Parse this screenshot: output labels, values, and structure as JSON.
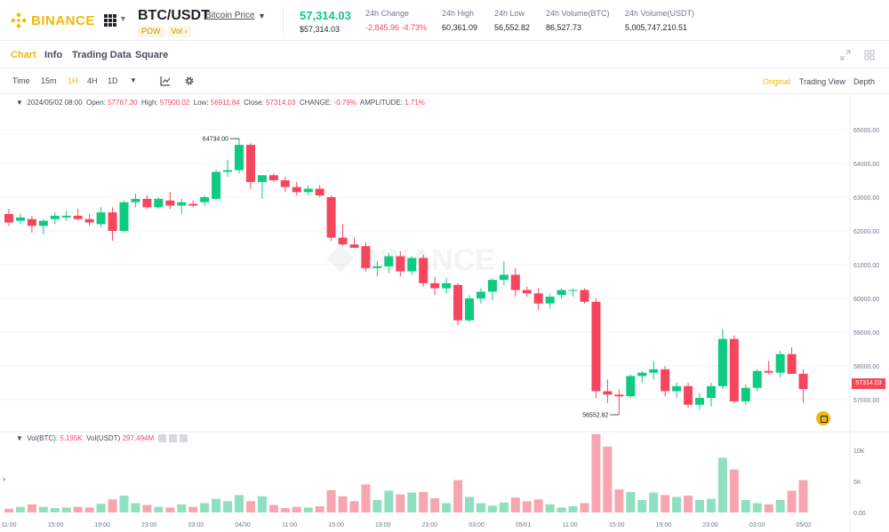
{
  "header": {
    "logo_text": "BINANCE",
    "pair": "BTC/USDT",
    "pair_link": "Bitcoin Price",
    "tags": [
      "POW",
      "Vol ›"
    ],
    "last_price": "57,314.03",
    "last_price_usd": "$57,314.03",
    "stats": [
      {
        "label": "24h Change",
        "value": "-2,845.96 -4.73%",
        "negative": true
      },
      {
        "label": "24h High",
        "value": "60,361.09",
        "negative": false
      },
      {
        "label": "24h Low",
        "value": "56,552.82",
        "negative": false
      },
      {
        "label": "24h Volume(BTC)",
        "value": "86,527.73",
        "negative": false
      },
      {
        "label": "24h Volume(USDT)",
        "value": "5,005,747,210.51",
        "negative": false
      }
    ],
    "colors": {
      "brand": "#f0b90b",
      "up": "#0ecb81",
      "down": "#f6465d"
    }
  },
  "tabs": [
    "Chart",
    "Info",
    "Trading Data",
    "Square"
  ],
  "active_tab": "Chart",
  "toolbar": {
    "intervals": [
      "Time",
      "15m",
      "1H",
      "4H",
      "1D"
    ],
    "active_interval": "1H",
    "views": [
      "Original",
      "Trading View",
      "Depth"
    ],
    "active_view": "Original",
    "icons": [
      "dropdown-caret-icon",
      "indicators-icon",
      "settings-icon",
      "fullscreen-icon",
      "layout-grid-icon"
    ]
  },
  "ohlc": {
    "date": "2024/05/02 08:00",
    "open_label": "Open:",
    "open": "57767.30",
    "high_label": "High:",
    "high": "57900.02",
    "low_label": "Low:",
    "low": "56911.84",
    "close_label": "Close:",
    "close": "57314.03",
    "change_label": "CHANGE:",
    "change": "-0.79%",
    "amplitude_label": "AMPLITUDE:",
    "amplitude": "1.71%"
  },
  "volume_legend": {
    "btc_label": "Vol(BTC):",
    "btc": "5.195K",
    "usdt_label": "Vol(USDT)",
    "usdt": "297.494M"
  },
  "watermark": "BINANCE",
  "chart_data": {
    "type": "candlestick",
    "price_axis_ticks": [
      "65000.00",
      "64000.00",
      "63000.00",
      "62000.00",
      "61000.00",
      "60000.00",
      "59000.00",
      "58000.00",
      "57000.00"
    ],
    "volume_axis_ticks": [
      "10K",
      "5K",
      "0.00"
    ],
    "time_labels": [
      "11:00",
      "15:00",
      "19:00",
      "23:00",
      "03:00",
      "04/30",
      "11:00",
      "15:00",
      "19:00",
      "23:00",
      "03:00",
      "05/01",
      "11:00",
      "15:00",
      "19:00",
      "23:00",
      "03:00",
      "05/02"
    ],
    "max_label": "64734.00",
    "min_label": "56552.82",
    "last_price_label": "57314.03",
    "ylim": [
      56500,
      65500
    ],
    "volume_ylim": [
      0,
      12000
    ],
    "candles": [
      {
        "o": 62500,
        "h": 62650,
        "l": 62150,
        "c": 62250,
        "v": 600
      },
      {
        "o": 62300,
        "h": 62500,
        "l": 62200,
        "c": 62400,
        "v": 900
      },
      {
        "o": 62350,
        "h": 62450,
        "l": 61950,
        "c": 62150,
        "v": 1300
      },
      {
        "o": 62150,
        "h": 62350,
        "l": 61900,
        "c": 62300,
        "v": 900
      },
      {
        "o": 62350,
        "h": 62550,
        "l": 62200,
        "c": 62450,
        "v": 700
      },
      {
        "o": 62400,
        "h": 62600,
        "l": 62300,
        "c": 62450,
        "v": 800
      },
      {
        "o": 62450,
        "h": 62650,
        "l": 62300,
        "c": 62350,
        "v": 900
      },
      {
        "o": 62350,
        "h": 62500,
        "l": 62150,
        "c": 62250,
        "v": 800
      },
      {
        "o": 62200,
        "h": 62700,
        "l": 62100,
        "c": 62550,
        "v": 1400
      },
      {
        "o": 62550,
        "h": 62700,
        "l": 61700,
        "c": 62000,
        "v": 2100
      },
      {
        "o": 62000,
        "h": 62900,
        "l": 61950,
        "c": 62850,
        "v": 2700
      },
      {
        "o": 62850,
        "h": 63100,
        "l": 62700,
        "c": 62950,
        "v": 1500
      },
      {
        "o": 62950,
        "h": 63050,
        "l": 62650,
        "c": 62700,
        "v": 1200
      },
      {
        "o": 62700,
        "h": 63000,
        "l": 62650,
        "c": 62950,
        "v": 900
      },
      {
        "o": 62900,
        "h": 63150,
        "l": 62650,
        "c": 62750,
        "v": 800
      },
      {
        "o": 62750,
        "h": 62950,
        "l": 62500,
        "c": 62850,
        "v": 1300
      },
      {
        "o": 62800,
        "h": 62900,
        "l": 62700,
        "c": 62750,
        "v": 900
      },
      {
        "o": 62850,
        "h": 63050,
        "l": 62750,
        "c": 63000,
        "v": 1500
      },
      {
        "o": 62950,
        "h": 63800,
        "l": 62900,
        "c": 63750,
        "v": 2200
      },
      {
        "o": 63750,
        "h": 64100,
        "l": 63600,
        "c": 63800,
        "v": 1800
      },
      {
        "o": 63800,
        "h": 64734,
        "l": 63700,
        "c": 64550,
        "v": 2800
      },
      {
        "o": 64550,
        "h": 64600,
        "l": 63250,
        "c": 63450,
        "v": 1800
      },
      {
        "o": 63450,
        "h": 63650,
        "l": 62950,
        "c": 63650,
        "v": 2600
      },
      {
        "o": 63650,
        "h": 63700,
        "l": 63450,
        "c": 63500,
        "v": 1200
      },
      {
        "o": 63500,
        "h": 63600,
        "l": 63150,
        "c": 63300,
        "v": 700
      },
      {
        "o": 63300,
        "h": 63450,
        "l": 63050,
        "c": 63150,
        "v": 900
      },
      {
        "o": 63150,
        "h": 63350,
        "l": 63050,
        "c": 63250,
        "v": 800
      },
      {
        "o": 63250,
        "h": 63350,
        "l": 63000,
        "c": 63050,
        "v": 1000
      },
      {
        "o": 63000,
        "h": 63050,
        "l": 61700,
        "c": 61800,
        "v": 3600
      },
      {
        "o": 61800,
        "h": 62200,
        "l": 61550,
        "c": 61600,
        "v": 2600
      },
      {
        "o": 61600,
        "h": 61800,
        "l": 61500,
        "c": 61500,
        "v": 1800
      },
      {
        "o": 61550,
        "h": 61650,
        "l": 60800,
        "c": 60900,
        "v": 4500
      },
      {
        "o": 60900,
        "h": 61100,
        "l": 60650,
        "c": 60950,
        "v": 2000
      },
      {
        "o": 60950,
        "h": 61350,
        "l": 60750,
        "c": 61250,
        "v": 3500
      },
      {
        "o": 61250,
        "h": 61400,
        "l": 60650,
        "c": 60800,
        "v": 2900
      },
      {
        "o": 60800,
        "h": 61250,
        "l": 60700,
        "c": 61200,
        "v": 3200
      },
      {
        "o": 61200,
        "h": 61300,
        "l": 60350,
        "c": 60450,
        "v": 3300
      },
      {
        "o": 60450,
        "h": 60650,
        "l": 60100,
        "c": 60300,
        "v": 2300
      },
      {
        "o": 60300,
        "h": 60600,
        "l": 60150,
        "c": 60450,
        "v": 1500
      },
      {
        "o": 60400,
        "h": 60450,
        "l": 59200,
        "c": 59350,
        "v": 5200
      },
      {
        "o": 59350,
        "h": 60100,
        "l": 59300,
        "c": 60000,
        "v": 2500
      },
      {
        "o": 60000,
        "h": 60300,
        "l": 59850,
        "c": 60200,
        "v": 1500
      },
      {
        "o": 60200,
        "h": 60600,
        "l": 59950,
        "c": 60550,
        "v": 1100
      },
      {
        "o": 60550,
        "h": 61100,
        "l": 60400,
        "c": 60700,
        "v": 1600
      },
      {
        "o": 60700,
        "h": 60900,
        "l": 60050,
        "c": 60250,
        "v": 2400
      },
      {
        "o": 60250,
        "h": 60350,
        "l": 60050,
        "c": 60150,
        "v": 1800
      },
      {
        "o": 60150,
        "h": 60300,
        "l": 59650,
        "c": 59850,
        "v": 2100
      },
      {
        "o": 59850,
        "h": 60150,
        "l": 59700,
        "c": 60050,
        "v": 1300
      },
      {
        "o": 60100,
        "h": 60300,
        "l": 60000,
        "c": 60250,
        "v": 800
      },
      {
        "o": 60250,
        "h": 60300,
        "l": 60050,
        "c": 60250,
        "v": 1000
      },
      {
        "o": 60250,
        "h": 60300,
        "l": 59850,
        "c": 59900,
        "v": 1500
      },
      {
        "o": 59900,
        "h": 60000,
        "l": 57050,
        "c": 57250,
        "v": 12600
      },
      {
        "o": 57250,
        "h": 57600,
        "l": 56900,
        "c": 57150,
        "v": 10600
      },
      {
        "o": 57150,
        "h": 57300,
        "l": 56552.82,
        "c": 57100,
        "v": 3700
      },
      {
        "o": 57100,
        "h": 57750,
        "l": 57050,
        "c": 57700,
        "v": 3300
      },
      {
        "o": 57700,
        "h": 57850,
        "l": 57500,
        "c": 57800,
        "v": 2000
      },
      {
        "o": 57800,
        "h": 58150,
        "l": 57600,
        "c": 57900,
        "v": 3200
      },
      {
        "o": 57900,
        "h": 58000,
        "l": 57100,
        "c": 57250,
        "v": 2800
      },
      {
        "o": 57250,
        "h": 57500,
        "l": 57050,
        "c": 57400,
        "v": 2500
      },
      {
        "o": 57400,
        "h": 57500,
        "l": 56750,
        "c": 56850,
        "v": 2700
      },
      {
        "o": 56850,
        "h": 57200,
        "l": 56700,
        "c": 57050,
        "v": 2000
      },
      {
        "o": 57050,
        "h": 57500,
        "l": 56800,
        "c": 57400,
        "v": 2200
      },
      {
        "o": 57400,
        "h": 59100,
        "l": 57300,
        "c": 58800,
        "v": 8800
      },
      {
        "o": 58800,
        "h": 58900,
        "l": 56900,
        "c": 56950,
        "v": 6900
      },
      {
        "o": 56950,
        "h": 57450,
        "l": 56850,
        "c": 57350,
        "v": 2000
      },
      {
        "o": 57350,
        "h": 57900,
        "l": 57250,
        "c": 57850,
        "v": 1500
      },
      {
        "o": 57850,
        "h": 58150,
        "l": 57750,
        "c": 57800,
        "v": 1300
      },
      {
        "o": 57800,
        "h": 58450,
        "l": 57650,
        "c": 58350,
        "v": 2000
      },
      {
        "o": 58350,
        "h": 58550,
        "l": 57750,
        "c": 57767.3,
        "v": 3500
      },
      {
        "o": 57767.3,
        "h": 57900.02,
        "l": 56911.84,
        "c": 57314.03,
        "v": 5195
      }
    ]
  }
}
